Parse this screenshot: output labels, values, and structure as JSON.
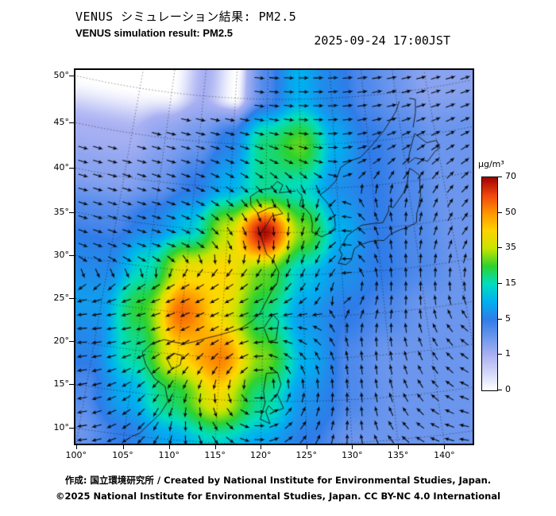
{
  "header": {
    "title_jp": "VENUS シミュレーション結果: PM2.5",
    "title_en": "VENUS simulation result: PM2.5",
    "timestamp": "2025-09-24 17:00JST"
  },
  "axes": {
    "lat_labels": [
      "50°",
      "45°",
      "40°",
      "35°",
      "30°",
      "25°",
      "20°",
      "15°",
      "10°"
    ],
    "lat_values": [
      50,
      45,
      40,
      35,
      30,
      25,
      20,
      15,
      10
    ],
    "lon_labels": [
      "100°",
      "105°",
      "110°",
      "115°",
      "120°",
      "125°",
      "130°",
      "135°",
      "140°"
    ],
    "lon_values": [
      100,
      105,
      110,
      115,
      120,
      125,
      130,
      135,
      140
    ]
  },
  "colorbar": {
    "unit": "μg/m³",
    "tick_labels": [
      "70",
      "50",
      "35",
      "15",
      "5",
      "1",
      "0"
    ],
    "tick_values": [
      70,
      50,
      35,
      15,
      5,
      1,
      0
    ]
  },
  "footer": {
    "credit": "作成: 国立環境研究所 / Created by National Institute for Environmental Studies, Japan.",
    "copyright": "©2025 National Institute for Environmental Studies, Japan. CC BY-NC 4.0 International"
  },
  "chart_data": {
    "type": "heatmap",
    "title": "VENUS simulation result: PM2.5",
    "unit": "μg/m³",
    "region": {
      "lon_range": [
        100,
        145
      ],
      "lat_range": [
        10,
        50
      ]
    },
    "grid": {
      "lons": [
        100,
        105,
        110,
        115,
        120,
        125,
        130,
        135,
        140,
        145
      ],
      "lats": [
        50,
        45,
        40,
        35,
        30,
        25,
        20,
        15,
        10
      ],
      "values_ugm3": [
        [
          0,
          0,
          1,
          0,
          4,
          10,
          6,
          4,
          3,
          2
        ],
        [
          1,
          2,
          3,
          6,
          20,
          28,
          10,
          5,
          4,
          3
        ],
        [
          2,
          3,
          5,
          10,
          18,
          15,
          7,
          5,
          4,
          3
        ],
        [
          4,
          6,
          12,
          35,
          68,
          30,
          10,
          5,
          4,
          3
        ],
        [
          6,
          15,
          40,
          42,
          28,
          12,
          7,
          5,
          4,
          3
        ],
        [
          8,
          25,
          55,
          40,
          20,
          8,
          5,
          4,
          3,
          3
        ],
        [
          6,
          18,
          42,
          52,
          30,
          10,
          4,
          3,
          3,
          3
        ],
        [
          4,
          10,
          22,
          40,
          18,
          7,
          4,
          3,
          3,
          3
        ],
        [
          3,
          5,
          9,
          14,
          9,
          5,
          3,
          3,
          3,
          3
        ]
      ]
    },
    "colorscale": [
      [
        0,
        "#ffffff"
      ],
      [
        1,
        "#a8b0f2"
      ],
      [
        5,
        "#2f7ce8"
      ],
      [
        10,
        "#00b0f0"
      ],
      [
        15,
        "#00ddc0"
      ],
      [
        25,
        "#2ed22e"
      ],
      [
        35,
        "#c8e400"
      ],
      [
        42,
        "#ffd800"
      ],
      [
        50,
        "#ff9400"
      ],
      [
        60,
        "#ee4510"
      ],
      [
        70,
        "#a00000"
      ]
    ],
    "wind": {
      "background": {
        "easterly_lat": 22,
        "westerly_lat": 33,
        "u_east": -1.0,
        "u_west": 1.2,
        "monsoon": {
          "lon": 110,
          "lat": 24,
          "v": 0.7,
          "sx": 9,
          "sy": 11
        }
      },
      "vortices": [
        {
          "lon": 119.5,
          "lat": 17.5,
          "strength": 2.5,
          "radius": 4.5,
          "rotation": "ccw"
        },
        {
          "lon": 131.5,
          "lat": 29.0,
          "strength": 1.5,
          "radius": 5.0,
          "rotation": "ccw"
        }
      ]
    }
  }
}
